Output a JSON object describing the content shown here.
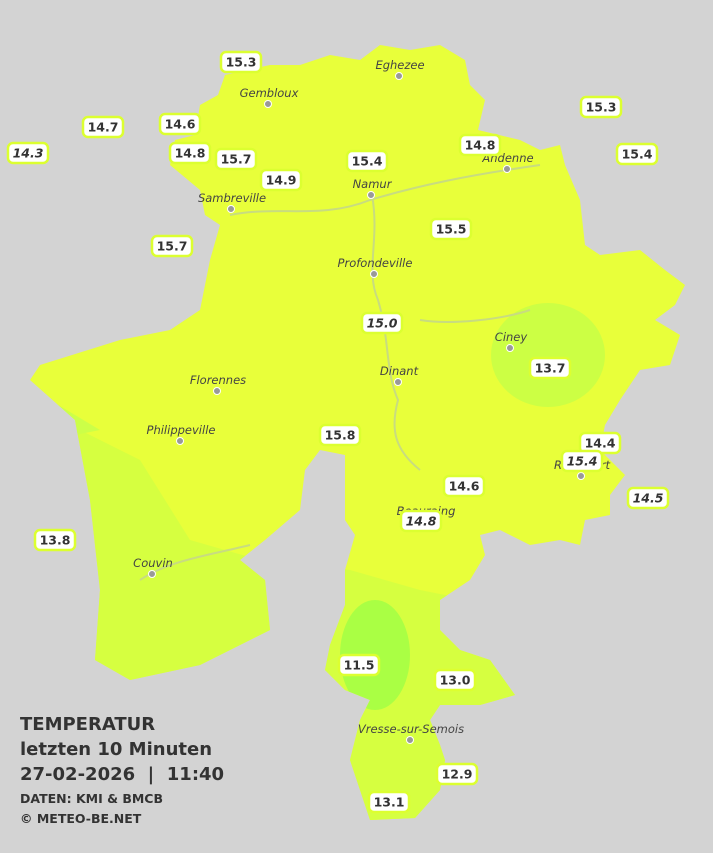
{
  "legend": {
    "title": "TEMPERATUR",
    "subtitle": "letzten 10 Minuten",
    "datetime": "27-02-2026  |  11:40",
    "source": "DATEN: KMI & BMCB",
    "copyright": "© METEO-BE.NET"
  },
  "cities": [
    "Eghezee",
    "Gembloux",
    "Andenne",
    "Namur",
    "Sambreville",
    "Profondeville",
    "Ciney",
    "Dinant",
    "Florennes",
    "Philippeville",
    "Rochefort",
    "Beauraing",
    "Couvin",
    "Vresse-sur-Semois"
  ],
  "stations": [
    {
      "label": "15.3"
    },
    {
      "label": "14.7"
    },
    {
      "label": "14.6"
    },
    {
      "label": "14.3",
      "italic": true
    },
    {
      "label": "14.8"
    },
    {
      "label": "15.7"
    },
    {
      "label": "14.9"
    },
    {
      "label": "15.4"
    },
    {
      "label": "14.8"
    },
    {
      "label": "15.3"
    },
    {
      "label": "15.4"
    },
    {
      "label": "15.7"
    },
    {
      "label": "15.5"
    },
    {
      "label": "15.0",
      "italic": true
    },
    {
      "label": "13.7"
    },
    {
      "label": "15.8"
    },
    {
      "label": "14.4"
    },
    {
      "label": "15.4",
      "italic": true
    },
    {
      "label": "14.6"
    },
    {
      "label": "14.5",
      "italic": true
    },
    {
      "label": "14.8",
      "italic": true
    },
    {
      "label": "13.8"
    },
    {
      "label": "11.5"
    },
    {
      "label": "13.0"
    },
    {
      "label": "12.9"
    },
    {
      "label": "13.1"
    }
  ]
}
